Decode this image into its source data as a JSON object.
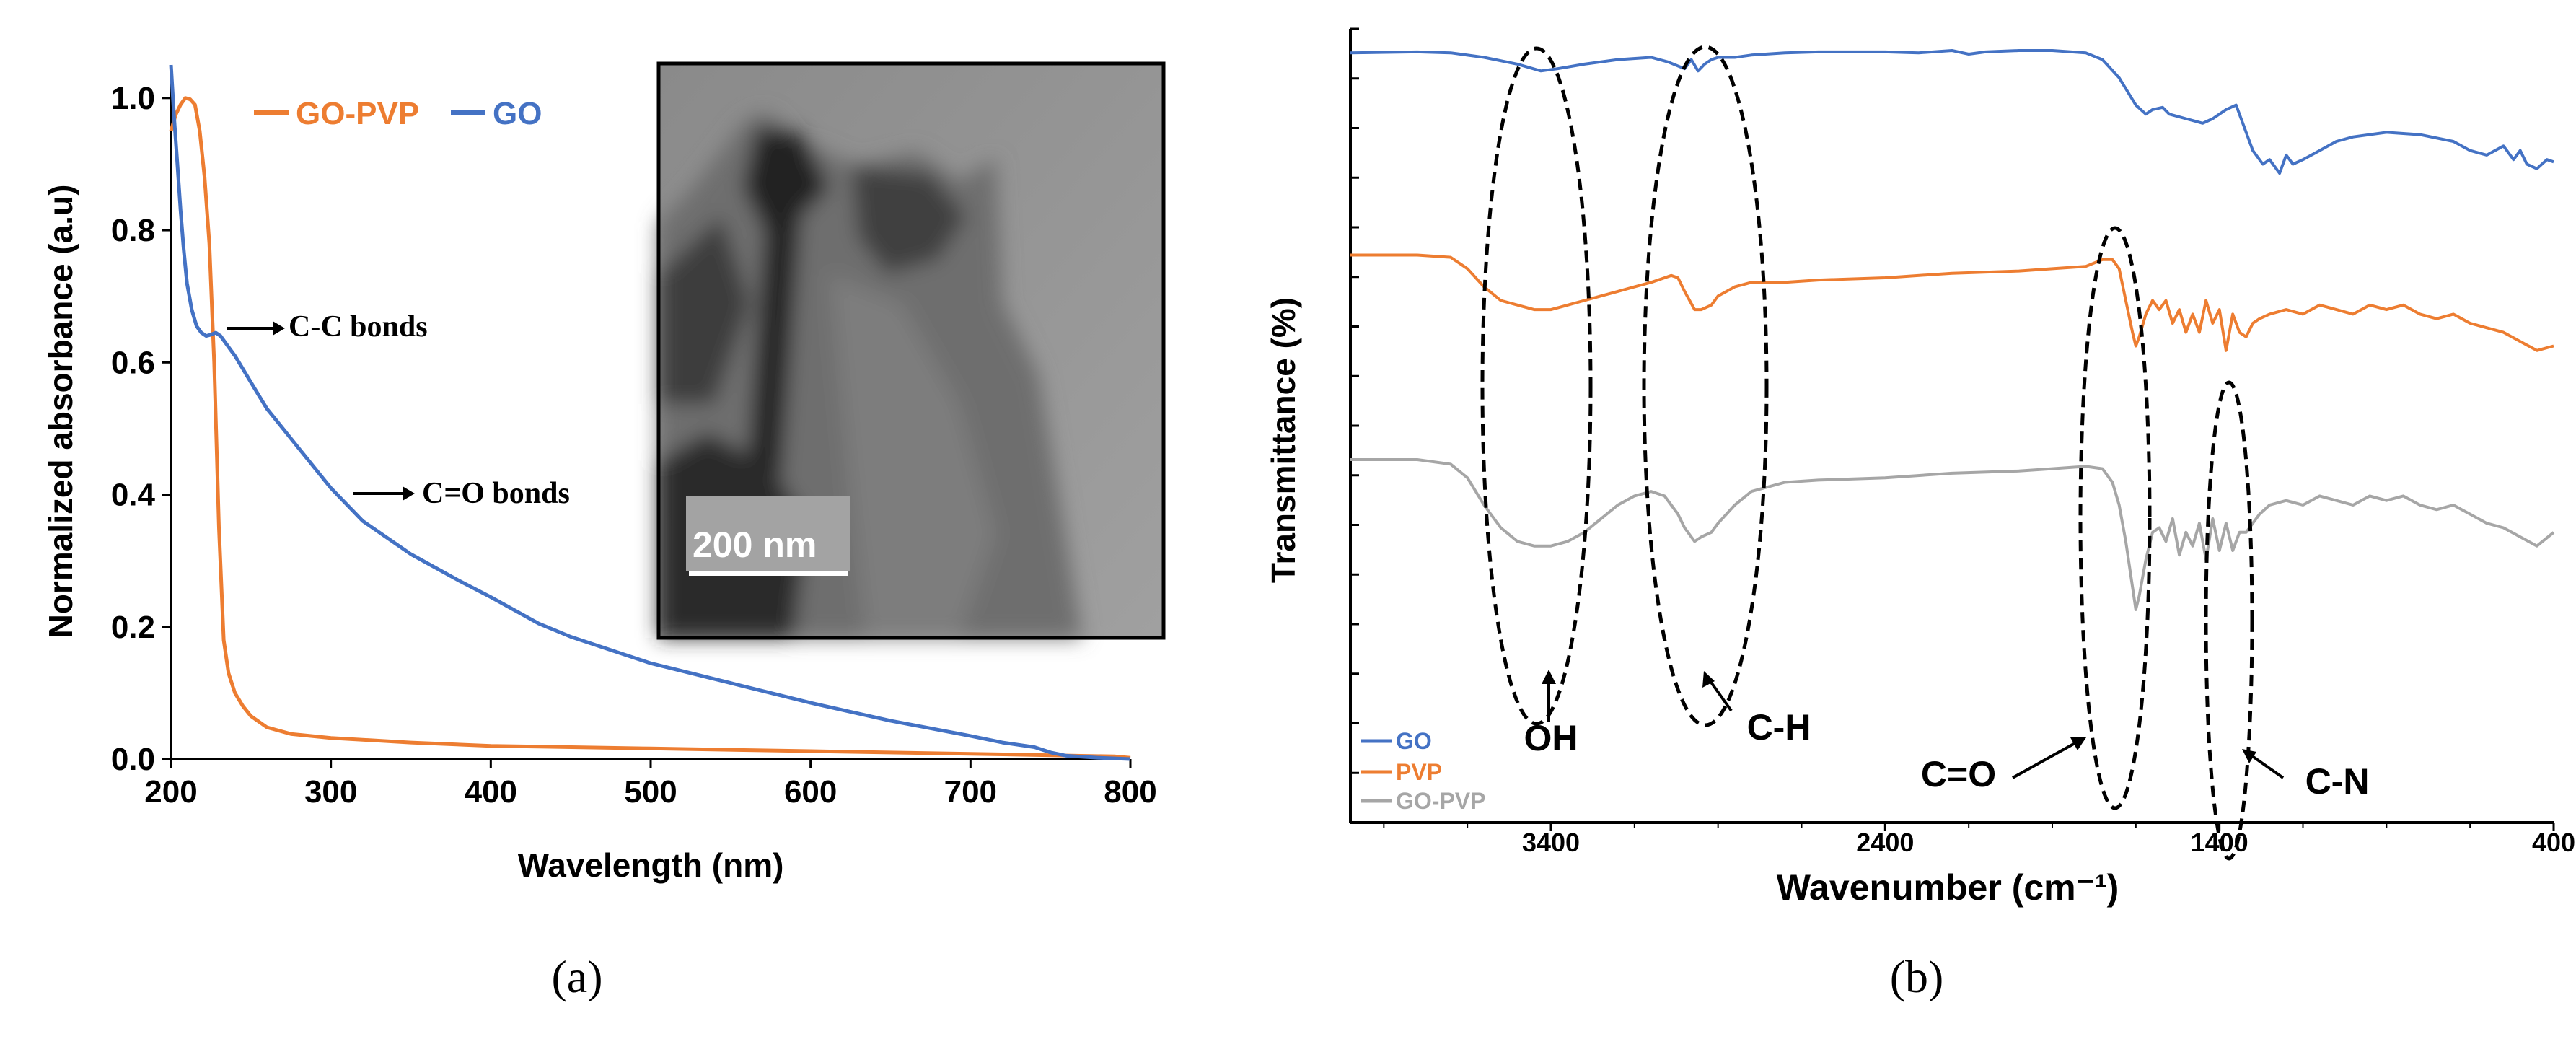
{
  "colors": {
    "go": "#4472c4",
    "pvp": "#ed7d31",
    "gopvp": "#a6a6a6",
    "axis": "#000000"
  },
  "chart_data": [
    {
      "panel": "(a)",
      "type": "line",
      "xlabel": "Wavelength (nm)",
      "ylabel": "Normalized absorbance (a.u)",
      "xlim": [
        200,
        800
      ],
      "ylim": [
        0,
        1.05
      ],
      "xticks": [
        "200",
        "300",
        "400",
        "500",
        "600",
        "700",
        "800"
      ],
      "yticks": [
        "0.0",
        "0.2",
        "0.4",
        "0.6",
        "0.8",
        "1.0"
      ],
      "legend": [
        "GO-PVP",
        "GO"
      ],
      "inset_scale_label": "200 nm",
      "annotations": [
        "C-C bonds",
        "C=O bonds"
      ],
      "series": [
        {
          "name": "GO-PVP",
          "color": "#ed7d31",
          "x": [
            200,
            203,
            206,
            209,
            212,
            215,
            218,
            221,
            224,
            227,
            230,
            233,
            236,
            240,
            245,
            250,
            260,
            275,
            300,
            350,
            400,
            500,
            600,
            700,
            790,
            800
          ],
          "y": [
            0.95,
            0.975,
            0.99,
            1.0,
            0.998,
            0.99,
            0.95,
            0.88,
            0.78,
            0.6,
            0.35,
            0.18,
            0.13,
            0.1,
            0.08,
            0.065,
            0.048,
            0.038,
            0.032,
            0.025,
            0.02,
            0.016,
            0.012,
            0.008,
            0.004,
            0.002
          ]
        },
        {
          "name": "GO",
          "color": "#4472c4",
          "x": [
            200,
            202,
            204,
            206,
            208,
            210,
            213,
            216,
            219,
            222,
            225,
            228,
            231,
            234,
            237,
            240,
            245,
            250,
            260,
            270,
            280,
            290,
            300,
            320,
            350,
            380,
            400,
            430,
            450,
            500,
            550,
            600,
            650,
            700,
            720,
            740,
            750,
            760,
            780,
            800
          ],
          "y": [
            1.05,
            0.97,
            0.9,
            0.83,
            0.77,
            0.72,
            0.68,
            0.655,
            0.645,
            0.64,
            0.642,
            0.645,
            0.64,
            0.63,
            0.62,
            0.61,
            0.59,
            0.57,
            0.53,
            0.5,
            0.47,
            0.44,
            0.41,
            0.36,
            0.31,
            0.27,
            0.245,
            0.205,
            0.185,
            0.145,
            0.115,
            0.085,
            0.058,
            0.035,
            0.025,
            0.018,
            0.01,
            0.005,
            0.002,
            0.0
          ]
        }
      ]
    },
    {
      "panel": "(b)",
      "type": "line",
      "xlabel": "Wavenumber (cm⁻¹)",
      "ylabel": "Transmittance (%)",
      "xlim": [
        4000,
        400
      ],
      "xticks": [
        "3400",
        "2400",
        "1400",
        "400"
      ],
      "yticks": [],
      "legend": [
        "GO",
        "PVP",
        "GO-PVP"
      ],
      "annotations": [
        "OH",
        "C-H",
        "C=O",
        "C-N"
      ],
      "series": [
        {
          "name": "GO",
          "color": "#4472c4",
          "offset": 30,
          "x": [
            4000,
            3800,
            3700,
            3600,
            3500,
            3430,
            3380,
            3300,
            3200,
            3100,
            3050,
            3000,
            2980,
            2960,
            2940,
            2920,
            2900,
            2850,
            2800,
            2700,
            2600,
            2500,
            2400,
            2300,
            2200,
            2150,
            2100,
            2000,
            1900,
            1800,
            1750,
            1700,
            1650,
            1620,
            1600,
            1570,
            1550,
            1500,
            1450,
            1420,
            1380,
            1350,
            1300,
            1270,
            1250,
            1220,
            1200,
            1180,
            1150,
            1100,
            1050,
            1000,
            900,
            800,
            700,
            650,
            600,
            550,
            520,
            500,
            480,
            450,
            420,
            400
          ],
          "y": [
            0.5,
            0.3,
            0.5,
            1.5,
            3.0,
            4.5,
            4.0,
            3.0,
            2.0,
            1.5,
            2.5,
            4.0,
            2.0,
            4.5,
            3.0,
            2.0,
            1.5,
            1.5,
            1.0,
            0.5,
            0.3,
            0.3,
            0.3,
            0.5,
            0.0,
            0.8,
            0.3,
            0.0,
            0.0,
            0.5,
            2.0,
            6.0,
            12.0,
            14.0,
            13.0,
            12.5,
            14.0,
            15.0,
            16.0,
            15.0,
            13.0,
            12.0,
            22.0,
            25.0,
            24.0,
            27.0,
            23.0,
            25.0,
            24.0,
            22.0,
            20.0,
            19.0,
            18.0,
            18.5,
            20.0,
            22.0,
            23.0,
            21.0,
            24.0,
            22.0,
            25.0,
            26.0,
            24.0,
            24.5
          ]
        },
        {
          "name": "PVP",
          "color": "#ed7d31",
          "offset": 45,
          "x": [
            4000,
            3800,
            3700,
            3650,
            3600,
            3550,
            3500,
            3450,
            3400,
            3350,
            3300,
            3250,
            3200,
            3150,
            3100,
            3060,
            3040,
            3020,
            3000,
            2970,
            2950,
            2920,
            2900,
            2850,
            2800,
            2700,
            2600,
            2400,
            2200,
            2000,
            1900,
            1800,
            1750,
            1720,
            1700,
            1680,
            1660,
            1650,
            1640,
            1620,
            1600,
            1580,
            1560,
            1540,
            1520,
            1500,
            1480,
            1460,
            1440,
            1420,
            1400,
            1380,
            1360,
            1340,
            1320,
            1300,
            1280,
            1250,
            1200,
            1150,
            1100,
            1050,
            1000,
            950,
            900,
            850,
            800,
            750,
            700,
            650,
            600,
            550,
            500,
            450,
            400
          ],
          "y": [
            45,
            45,
            45.5,
            48,
            52,
            55,
            56,
            57,
            57,
            56,
            55,
            54,
            53,
            52,
            51,
            50,
            49.5,
            50,
            53,
            57,
            57,
            56,
            54,
            52,
            51,
            51,
            50.5,
            50,
            49,
            48.5,
            48,
            47.5,
            46,
            46,
            48,
            55,
            62,
            65,
            63,
            58,
            55,
            57,
            55,
            60,
            57,
            62,
            58,
            62,
            55,
            60,
            57,
            66,
            58,
            62,
            63,
            60,
            59,
            58,
            57,
            58,
            56,
            57,
            58,
            56,
            57,
            56,
            58,
            59,
            58,
            60,
            61,
            62,
            64,
            66,
            65
          ]
        },
        {
          "name": "GO-PVP",
          "color": "#a6a6a6",
          "offset": 90,
          "x": [
            4000,
            3800,
            3700,
            3650,
            3600,
            3550,
            3500,
            3450,
            3400,
            3350,
            3300,
            3250,
            3200,
            3150,
            3100,
            3060,
            3040,
            3020,
            3000,
            2970,
            2950,
            2920,
            2900,
            2850,
            2800,
            2700,
            2600,
            2400,
            2200,
            2000,
            1900,
            1800,
            1750,
            1720,
            1700,
            1680,
            1660,
            1650,
            1640,
            1620,
            1600,
            1580,
            1560,
            1540,
            1520,
            1500,
            1480,
            1460,
            1440,
            1420,
            1400,
            1380,
            1360,
            1340,
            1320,
            1300,
            1280,
            1250,
            1200,
            1150,
            1100,
            1050,
            1000,
            950,
            900,
            850,
            800,
            750,
            700,
            650,
            600,
            550,
            500,
            450,
            400
          ],
          "y": [
            90,
            90,
            91,
            94,
            100,
            105,
            108,
            109,
            109,
            108,
            106,
            103,
            100,
            98,
            97,
            98,
            100,
            102,
            105,
            108,
            107,
            106,
            104,
            100,
            97,
            95,
            94.5,
            94,
            93,
            92.5,
            92,
            91.5,
            92,
            95,
            100,
            108,
            118,
            123,
            120,
            112,
            106,
            105,
            108,
            103,
            111,
            106,
            109,
            104,
            112,
            103,
            110,
            104,
            110,
            106,
            106,
            104,
            102,
            100,
            99,
            100,
            98,
            99,
            100,
            98,
            99,
            98,
            100,
            101,
            100,
            102,
            104,
            105,
            107,
            109,
            106
          ]
        }
      ]
    }
  ],
  "captions": {
    "a": "(a)",
    "b": "(b)"
  }
}
